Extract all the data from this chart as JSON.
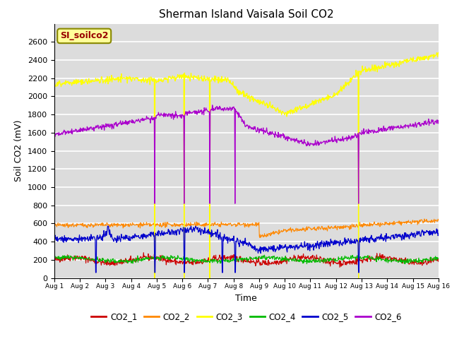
{
  "title": "Sherman Island Vaisala Soil CO2",
  "xlabel": "Time",
  "ylabel": "Soil CO2 (mV)",
  "ylim": [
    0,
    2800
  ],
  "yticks": [
    0,
    200,
    400,
    600,
    800,
    1000,
    1200,
    1400,
    1600,
    1800,
    2000,
    2200,
    2400,
    2600
  ],
  "bg_color": "#dcdcdc",
  "colors": {
    "CO2_1": "#cc0000",
    "CO2_2": "#ff8800",
    "CO2_3": "#ffff00",
    "CO2_4": "#00bb00",
    "CO2_5": "#0000cc",
    "CO2_6": "#aa00cc"
  },
  "watermark": "SI_soilco2",
  "watermark_color": "#990000",
  "watermark_bg": "#ffff99",
  "n_points": 900,
  "x_start": 0,
  "x_end": 15,
  "xtick_labels": [
    "Aug 1",
    "Aug 2",
    "Aug 3",
    "Aug 4",
    "Aug 5",
    "Aug 6",
    "Aug 7",
    "Aug 8",
    "Aug 9",
    "Aug 10",
    "Aug 11",
    "Aug 12",
    "Aug 13",
    "Aug 14",
    "Aug 15",
    "Aug 16"
  ],
  "xtick_positions": [
    0,
    1,
    2,
    3,
    4,
    5,
    6,
    7,
    8,
    9,
    10,
    11,
    12,
    13,
    14,
    15
  ]
}
